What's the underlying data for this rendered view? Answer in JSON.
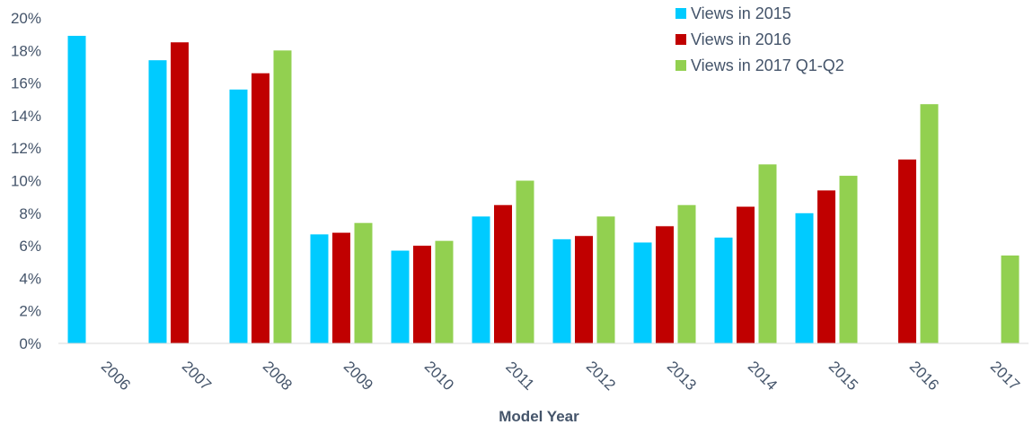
{
  "chart_data": {
    "type": "bar",
    "xlabel": "Model Year",
    "ylabel": "",
    "ylim": [
      0,
      20
    ],
    "y_ticks": [
      "0%",
      "2%",
      "4%",
      "6%",
      "8%",
      "10%",
      "12%",
      "14%",
      "16%",
      "18%",
      "20%"
    ],
    "y_unit": "%",
    "categories": [
      "2006",
      "2007",
      "2008",
      "2009",
      "2010",
      "2011",
      "2012",
      "2013",
      "2014",
      "2015",
      "2016",
      "2017"
    ],
    "series": [
      {
        "name": "Views in 2015",
        "color": "#00cbff",
        "values": [
          18.9,
          17.4,
          15.6,
          6.7,
          5.7,
          7.8,
          6.4,
          6.2,
          6.5,
          8.0,
          null,
          null
        ]
      },
      {
        "name": "Views in 2016",
        "color": "#c00000",
        "values": [
          null,
          18.5,
          16.6,
          6.8,
          6.0,
          8.5,
          6.6,
          7.2,
          8.4,
          9.4,
          11.3,
          null
        ]
      },
      {
        "name": "Views in 2017 Q1-Q2",
        "color": "#92d050",
        "values": [
          null,
          null,
          18.0,
          7.4,
          6.3,
          10.0,
          7.8,
          8.5,
          11.0,
          10.3,
          14.7,
          5.4
        ]
      }
    ],
    "legend_position": "top-right",
    "grid": false
  }
}
